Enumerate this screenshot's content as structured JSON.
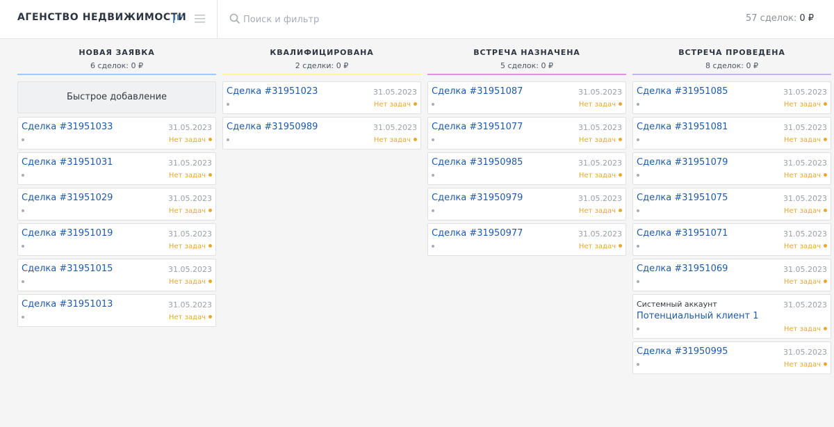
{
  "header": {
    "title": "АГЕНСТВО НЕДВИЖИМОСТИ",
    "search_placeholder": "Поиск и фильтр",
    "summary_count": "57 сделок:",
    "summary_sum": "0 ₽",
    "icons": [
      "kanban-view-icon",
      "list-view-icon",
      "search-icon"
    ]
  },
  "quick_add_label": "Быстрое добавление",
  "columns": [
    {
      "title": "НОВАЯ ЗАЯВКА",
      "count": "6 сделок: 0 ₽",
      "color": "#99ccff",
      "cards": [
        {
          "name": "Сделка #31951033",
          "date": "31.05.2023",
          "tasks": "Нет задач"
        },
        {
          "name": "Сделка #31951031",
          "date": "31.05.2023",
          "tasks": "Нет задач"
        },
        {
          "name": "Сделка #31951029",
          "date": "31.05.2023",
          "tasks": "Нет задач"
        },
        {
          "name": "Сделка #31951019",
          "date": "31.05.2023",
          "tasks": "Нет задач"
        },
        {
          "name": "Сделка #31951015",
          "date": "31.05.2023",
          "tasks": "Нет задач"
        },
        {
          "name": "Сделка #31951013",
          "date": "31.05.2023",
          "tasks": "Нет задач"
        }
      ]
    },
    {
      "title": "КВАЛИФИЦИРОВАНА",
      "count": "2 сделки: 0 ₽",
      "color": "#fff59d",
      "cards": [
        {
          "name": "Сделка #31951023",
          "date": "31.05.2023",
          "tasks": "Нет задач"
        },
        {
          "name": "Сделка #31950989",
          "date": "31.05.2023",
          "tasks": "Нет задач"
        }
      ]
    },
    {
      "title": "ВСТРЕЧА НАЗНАЧЕНА",
      "count": "5 сделок: 0 ₽",
      "color": "#e28ee8",
      "cards": [
        {
          "name": "Сделка #31951087",
          "date": "31.05.2023",
          "tasks": "Нет задач"
        },
        {
          "name": "Сделка #31951077",
          "date": "31.05.2023",
          "tasks": "Нет задач"
        },
        {
          "name": "Сделка #31950985",
          "date": "31.05.2023",
          "tasks": "Нет задач"
        },
        {
          "name": "Сделка #31950979",
          "date": "31.05.2023",
          "tasks": "Нет задач"
        },
        {
          "name": "Сделка #31950977",
          "date": "31.05.2023",
          "tasks": "Нет задач"
        }
      ]
    },
    {
      "title": "ВСТРЕЧА ПРОВЕДЕНА",
      "count": "8 сделок: 0 ₽",
      "color": "#c5b3ee",
      "cards": [
        {
          "name": "Сделка #31951085",
          "date": "31.05.2023",
          "tasks": "Нет задач"
        },
        {
          "name": "Сделка #31951081",
          "date": "31.05.2023",
          "tasks": "Нет задач"
        },
        {
          "name": "Сделка #31951079",
          "date": "31.05.2023",
          "tasks": "Нет задач"
        },
        {
          "name": "Сделка #31951075",
          "date": "31.05.2023",
          "tasks": "Нет задач"
        },
        {
          "name": "Сделка #31951071",
          "date": "31.05.2023",
          "tasks": "Нет задач"
        },
        {
          "name": "Сделка #31951069",
          "date": "31.05.2023",
          "tasks": "Нет задач"
        },
        {
          "company": "Системный аккаунт",
          "name": "Потенциальный клиент 1",
          "date": "31.05.2023",
          "tasks": "Нет задач"
        },
        {
          "name": "Сделка #31950995",
          "date": "31.05.2023",
          "tasks": "Нет задач"
        }
      ]
    }
  ]
}
